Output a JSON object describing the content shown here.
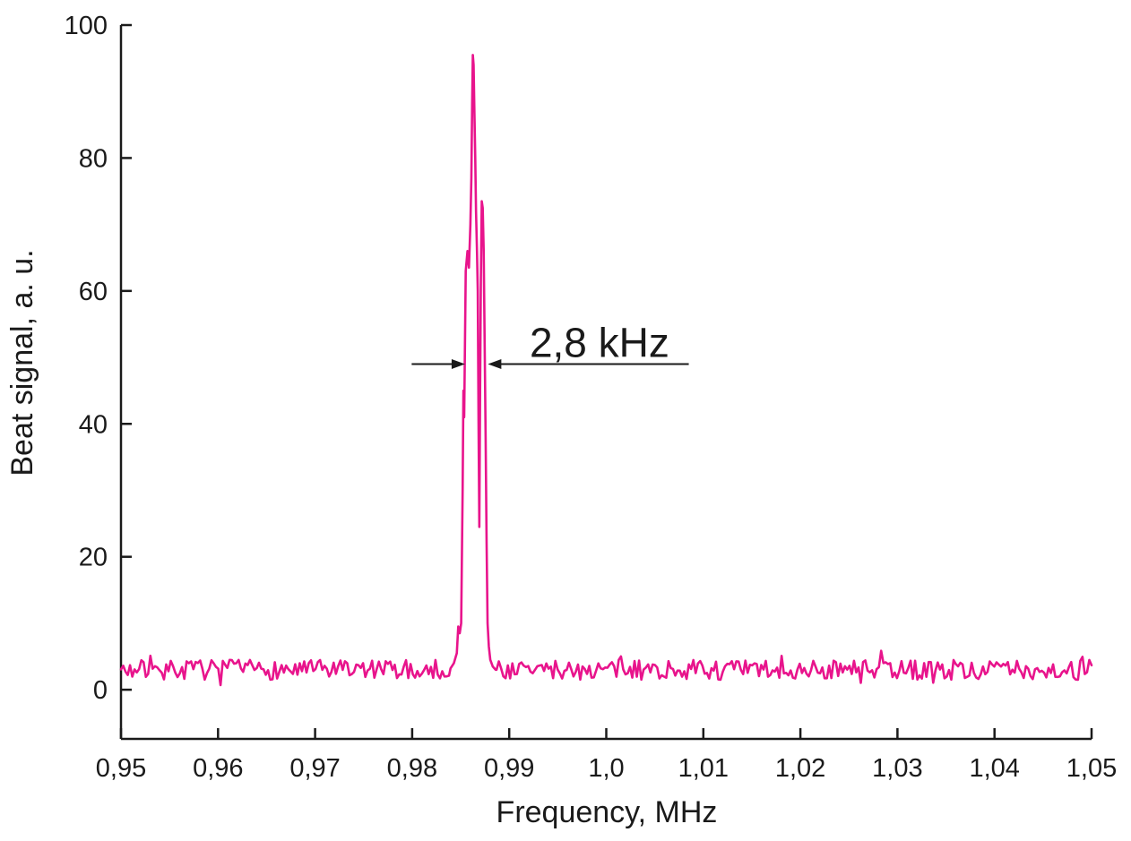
{
  "chart_data": {
    "type": "line",
    "title": "",
    "xlabel": "Frequency, MHz",
    "ylabel": "Beat signal, a. u.",
    "xlim": [
      0.95,
      1.05
    ],
    "ylim": [
      -7.4,
      100
    ],
    "grid": false,
    "legend": "none",
    "line_color": "#E8148C",
    "axis_color": "#1a1a1a",
    "x_ticks": [
      0.95,
      0.96,
      0.97,
      0.98,
      0.99,
      1.0,
      1.01,
      1.02,
      1.03,
      1.04,
      1.05
    ],
    "x_tick_labels": [
      "0,95",
      "0,96",
      "0,97",
      "0,98",
      "0,99",
      "1,0",
      "1,01",
      "1,02",
      "1,03",
      "1,04",
      "1,05"
    ],
    "y_ticks": [
      0,
      20,
      40,
      60,
      80,
      100
    ],
    "y_tick_labels": [
      "0",
      "20",
      "40",
      "60",
      "80",
      "100"
    ],
    "baseline": {
      "mean": 3.0,
      "noise_amplitude": 1.5,
      "spike_chance": 0.08,
      "spike_amplitude": 1.6,
      "points": 430,
      "seed": 7
    },
    "peak_profile": [
      [
        0.98395,
        3.2
      ],
      [
        0.9843,
        4.0
      ],
      [
        0.9846,
        5.5
      ],
      [
        0.98475,
        9.5
      ],
      [
        0.9849,
        8.5
      ],
      [
        0.98505,
        10.0
      ],
      [
        0.9852,
        30.0
      ],
      [
        0.98528,
        45.0
      ],
      [
        0.98536,
        41.0
      ],
      [
        0.98544,
        52.0
      ],
      [
        0.98552,
        63.0
      ],
      [
        0.9857,
        66.0
      ],
      [
        0.98585,
        63.5
      ],
      [
        0.986,
        70.0
      ],
      [
        0.9861,
        77.0
      ],
      [
        0.98618,
        88.0
      ],
      [
        0.98625,
        95.5
      ],
      [
        0.98633,
        94.0
      ],
      [
        0.9864,
        88.0
      ],
      [
        0.9865,
        80.0
      ],
      [
        0.98658,
        72.0
      ],
      [
        0.98668,
        66.0
      ],
      [
        0.98676,
        60.0
      ],
      [
        0.98684,
        40.0
      ],
      [
        0.98692,
        24.5
      ],
      [
        0.987,
        45.0
      ],
      [
        0.98708,
        62.0
      ],
      [
        0.98717,
        73.5
      ],
      [
        0.98727,
        72.5
      ],
      [
        0.98737,
        66.0
      ],
      [
        0.98747,
        52.0
      ],
      [
        0.98757,
        38.0
      ],
      [
        0.98767,
        22.0
      ],
      [
        0.98777,
        10.0
      ],
      [
        0.9879,
        6.5
      ],
      [
        0.98805,
        4.5
      ],
      [
        0.9883,
        3.5
      ],
      [
        0.9886,
        3.0
      ]
    ],
    "peaks": [
      {
        "x": 0.98625,
        "y": 95.5
      },
      {
        "x": 0.98717,
        "y": 73.5
      }
    ],
    "annotation": {
      "text": "2,8 kHz",
      "y": 49,
      "left_line": [
        0.97995,
        0.98545
      ],
      "right_line": [
        0.9878,
        1.0085
      ],
      "label_x": 0.9993
    }
  }
}
